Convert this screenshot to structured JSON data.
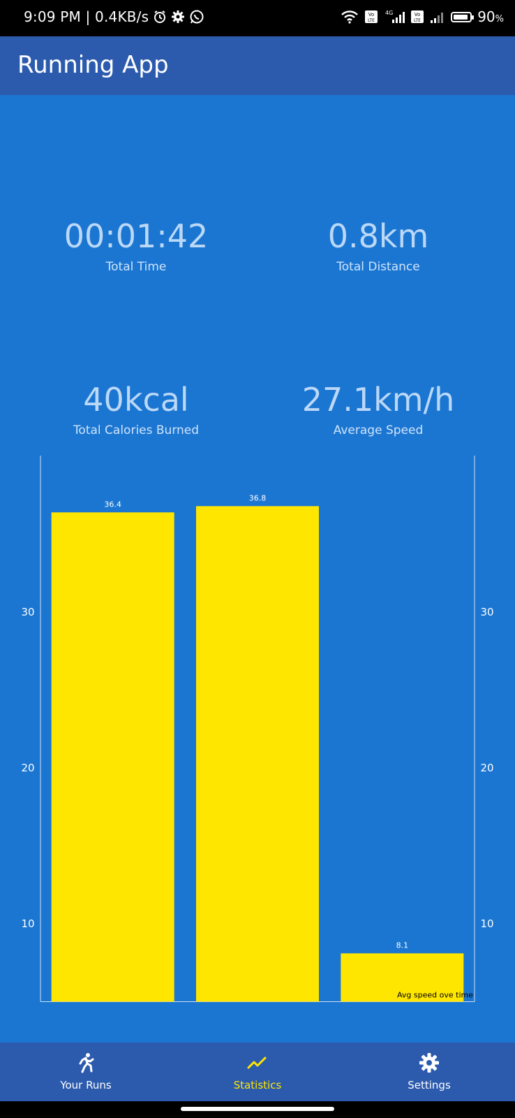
{
  "status_bar": {
    "time_net": "9:09 PM | 0.4KB/s",
    "battery": "90",
    "battery_unit": "%",
    "battery_level": 0.9,
    "icons": [
      "alarm-icon",
      "gear-icon",
      "whatsapp-icon",
      "wifi-icon",
      "volte-icon",
      "signal-4g-icon",
      "volte-icon",
      "signal-icon",
      "battery-icon"
    ]
  },
  "appbar": {
    "title": "Running App"
  },
  "stats": {
    "total_time": {
      "value": "00:01:42",
      "label": "Total Time"
    },
    "total_distance": {
      "value": "0.8km",
      "label": "Total Distance"
    },
    "total_calories": {
      "value": "40kcal",
      "label": "Total Calories Burned"
    },
    "average_speed": {
      "value": "27.1km/h",
      "label": "Average Speed"
    }
  },
  "chart_data": {
    "type": "bar",
    "categories": [
      "",
      "",
      ""
    ],
    "values": [
      36.4,
      36.8,
      8.1
    ],
    "value_labels": [
      "36.4",
      "36.8",
      "8.1"
    ],
    "ylim": [
      5,
      40
    ],
    "yticks": [
      10,
      20,
      30
    ],
    "ytick_labels": [
      "10",
      "20",
      "30"
    ],
    "legend": "Avg speed ove time",
    "legend_position": "bottom-right",
    "bar_color": "#FFE600",
    "grid": false
  },
  "bottom_nav": {
    "items": [
      {
        "label": "Your Runs",
        "icon": "running-icon",
        "active": false
      },
      {
        "label": "Statistics",
        "icon": "trending-up-icon",
        "active": true
      },
      {
        "label": "Settings",
        "icon": "gear-icon",
        "active": false
      }
    ]
  },
  "colors": {
    "background": "#1B76D2",
    "appbar": "#2C5BAE",
    "accent": "#FFE600",
    "stat_text": "#BBD8F7"
  }
}
